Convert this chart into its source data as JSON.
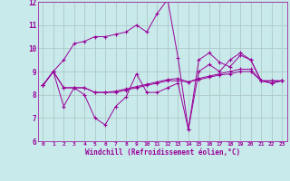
{
  "xlabel": "Windchill (Refroidissement éolien,°C)",
  "background_color": "#c8eaea",
  "grid_color": "#b0c8c8",
  "line_color": "#990099",
  "xlim": [
    -0.5,
    23.5
  ],
  "ylim": [
    6,
    12
  ],
  "xticks": [
    0,
    1,
    2,
    3,
    4,
    5,
    6,
    7,
    8,
    9,
    10,
    11,
    12,
    13,
    14,
    15,
    16,
    17,
    18,
    19,
    20,
    21,
    22,
    23
  ],
  "yticks": [
    6,
    7,
    8,
    9,
    10,
    11,
    12
  ],
  "series": [
    [
      8.4,
      9.0,
      7.5,
      8.3,
      8.0,
      7.0,
      6.7,
      7.5,
      7.9,
      8.9,
      8.1,
      8.1,
      8.3,
      8.5,
      6.5,
      9.5,
      9.8,
      9.4,
      9.2,
      9.7,
      9.5,
      8.6,
      8.5,
      8.6
    ],
    [
      8.4,
      9.0,
      8.3,
      8.3,
      8.3,
      8.1,
      8.1,
      8.1,
      8.2,
      8.3,
      8.4,
      8.5,
      8.6,
      8.6,
      8.55,
      8.65,
      8.75,
      8.85,
      8.9,
      9.0,
      9.0,
      8.6,
      8.6,
      8.6
    ],
    [
      8.4,
      9.0,
      9.5,
      10.2,
      10.3,
      10.5,
      10.5,
      10.6,
      10.7,
      11.0,
      10.7,
      11.5,
      12.1,
      9.6,
      6.5,
      9.0,
      9.3,
      9.0,
      9.5,
      9.8,
      9.5,
      8.6,
      8.5,
      8.6
    ],
    [
      8.4,
      9.0,
      8.3,
      8.3,
      8.3,
      8.1,
      8.1,
      8.15,
      8.25,
      8.35,
      8.45,
      8.55,
      8.65,
      8.7,
      8.55,
      8.7,
      8.8,
      8.9,
      9.0,
      9.1,
      9.1,
      8.6,
      8.6,
      8.6
    ]
  ]
}
